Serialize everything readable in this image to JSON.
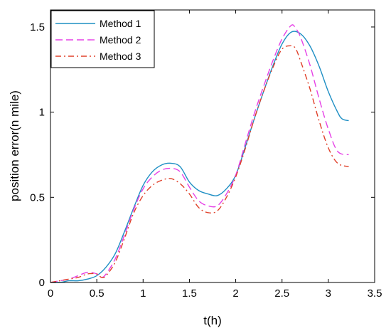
{
  "chart_data": {
    "type": "line",
    "title": "",
    "xlabel": "t(h)",
    "ylabel": "position error(n mile)",
    "xlim": [
      0,
      3.5
    ],
    "ylim": [
      0,
      1.6
    ],
    "xticks": [
      0,
      0.5,
      1,
      1.5,
      2,
      2.5,
      3,
      3.5
    ],
    "xtick_labels": [
      "0",
      "0.5",
      "1",
      "1.5",
      "2",
      "2.5",
      "3",
      "3.5"
    ],
    "yticks": [
      0,
      0.5,
      1,
      1.5
    ],
    "ytick_labels": [
      "0",
      "0.5",
      "1",
      "1.5"
    ],
    "grid": false,
    "legend_position": "top-left",
    "series": [
      {
        "name": "Method 1",
        "color": "#1f8fc4",
        "dash": "solid",
        "x": [
          0,
          0.1,
          0.2,
          0.3,
          0.4,
          0.5,
          0.6,
          0.7,
          0.8,
          0.9,
          1.0,
          1.1,
          1.2,
          1.3,
          1.4,
          1.5,
          1.6,
          1.7,
          1.8,
          1.9,
          2.0,
          2.1,
          2.2,
          2.3,
          2.4,
          2.5,
          2.6,
          2.7,
          2.8,
          2.9,
          3.0,
          3.1,
          3.15,
          3.22
        ],
        "y": [
          0,
          0,
          0.01,
          0.01,
          0.02,
          0.04,
          0.09,
          0.17,
          0.3,
          0.44,
          0.57,
          0.65,
          0.69,
          0.7,
          0.68,
          0.59,
          0.54,
          0.52,
          0.51,
          0.55,
          0.63,
          0.79,
          0.96,
          1.12,
          1.27,
          1.4,
          1.47,
          1.46,
          1.39,
          1.27,
          1.12,
          1.0,
          0.96,
          0.95
        ]
      },
      {
        "name": "Method 2",
        "color": "#e640e6",
        "dash": "long",
        "x": [
          0,
          0.1,
          0.2,
          0.3,
          0.4,
          0.5,
          0.55,
          0.6,
          0.7,
          0.8,
          0.9,
          1.0,
          1.1,
          1.2,
          1.3,
          1.4,
          1.5,
          1.6,
          1.7,
          1.8,
          1.9,
          2.0,
          2.1,
          2.2,
          2.3,
          2.4,
          2.5,
          2.6,
          2.65,
          2.7,
          2.8,
          2.9,
          3.0,
          3.1,
          3.22
        ],
        "y": [
          0,
          0.01,
          0.02,
          0.04,
          0.06,
          0.05,
          0.03,
          0.05,
          0.14,
          0.28,
          0.43,
          0.55,
          0.62,
          0.66,
          0.67,
          0.65,
          0.56,
          0.48,
          0.45,
          0.45,
          0.52,
          0.63,
          0.81,
          0.99,
          1.15,
          1.3,
          1.43,
          1.51,
          1.49,
          1.44,
          1.28,
          1.08,
          0.9,
          0.77,
          0.75
        ]
      },
      {
        "name": "Method 3",
        "color": "#e0402a",
        "dash": "dashdot",
        "x": [
          0,
          0.1,
          0.2,
          0.3,
          0.4,
          0.5,
          0.55,
          0.6,
          0.7,
          0.8,
          0.9,
          1.0,
          1.1,
          1.2,
          1.3,
          1.4,
          1.5,
          1.6,
          1.7,
          1.8,
          1.9,
          2.0,
          2.1,
          2.2,
          2.3,
          2.4,
          2.5,
          2.6,
          2.65,
          2.7,
          2.8,
          2.9,
          3.0,
          3.1,
          3.22
        ],
        "y": [
          0,
          0.01,
          0.02,
          0.03,
          0.05,
          0.05,
          0.03,
          0.04,
          0.12,
          0.26,
          0.41,
          0.51,
          0.57,
          0.6,
          0.61,
          0.58,
          0.52,
          0.44,
          0.41,
          0.42,
          0.5,
          0.62,
          0.78,
          0.96,
          1.12,
          1.26,
          1.37,
          1.39,
          1.37,
          1.3,
          1.14,
          0.95,
          0.79,
          0.7,
          0.68
        ]
      }
    ]
  }
}
